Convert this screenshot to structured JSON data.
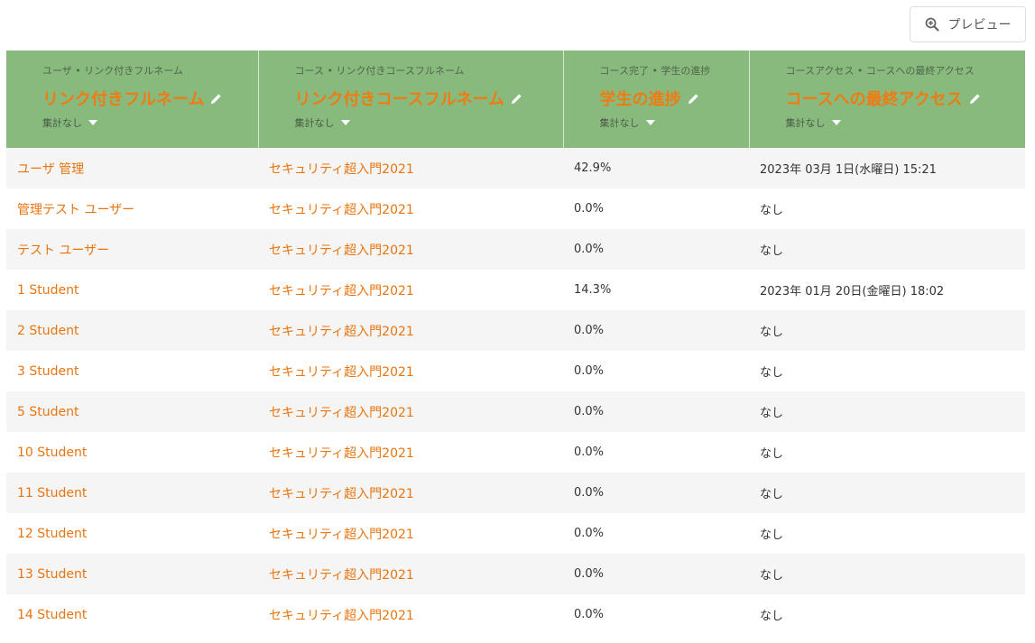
{
  "toolbar": {
    "preview_label": "プレビュー"
  },
  "columns": [
    {
      "subtitle": "ユーザ • リンク付きフルネーム",
      "title": "リンク付きフルネーム",
      "aggregation": "集計なし"
    },
    {
      "subtitle": "コース • リンク付きコースフルネーム",
      "title": "リンク付きコースフルネーム",
      "aggregation": "集計なし"
    },
    {
      "subtitle": "コース完了 • 学生の進捗",
      "title": "学生の進捗",
      "aggregation": "集計なし"
    },
    {
      "subtitle": "コースアクセス • コースへの最終アクセス",
      "title": "コースへの最終アクセス",
      "aggregation": "集計なし"
    }
  ],
  "rows": [
    {
      "name": "ユーザ 管理",
      "course": "セキュリティ超入門2021",
      "progress": "42.9%",
      "last_access": "2023年 03月 1日(水曜日) 15:21"
    },
    {
      "name": "管理テスト ユーザー",
      "course": "セキュリティ超入門2021",
      "progress": "0.0%",
      "last_access": "なし"
    },
    {
      "name": "テスト ユーザー",
      "course": "セキュリティ超入門2021",
      "progress": "0.0%",
      "last_access": "なし"
    },
    {
      "name": "1 Student",
      "course": "セキュリティ超入門2021",
      "progress": "14.3%",
      "last_access": "2023年 01月 20日(金曜日) 18:02"
    },
    {
      "name": "2 Student",
      "course": "セキュリティ超入門2021",
      "progress": "0.0%",
      "last_access": "なし"
    },
    {
      "name": "3 Student",
      "course": "セキュリティ超入門2021",
      "progress": "0.0%",
      "last_access": "なし"
    },
    {
      "name": "5 Student",
      "course": "セキュリティ超入門2021",
      "progress": "0.0%",
      "last_access": "なし"
    },
    {
      "name": "10 Student",
      "course": "セキュリティ超入門2021",
      "progress": "0.0%",
      "last_access": "なし"
    },
    {
      "name": "11 Student",
      "course": "セキュリティ超入門2021",
      "progress": "0.0%",
      "last_access": "なし"
    },
    {
      "name": "12 Student",
      "course": "セキュリティ超入門2021",
      "progress": "0.0%",
      "last_access": "なし"
    },
    {
      "name": "13 Student",
      "course": "セキュリティ超入門2021",
      "progress": "0.0%",
      "last_access": "なし"
    },
    {
      "name": "14 Student",
      "course": "セキュリティ超入門2021",
      "progress": "0.0%",
      "last_access": "なし"
    }
  ],
  "icons": {
    "preview": "zoom-in-icon",
    "edit": "pencil-icon",
    "aggregation": "caret-down-icon"
  },
  "colors": {
    "header_bg": "#88ba7d",
    "accent": "#f07b12",
    "link": "#e8750f"
  }
}
